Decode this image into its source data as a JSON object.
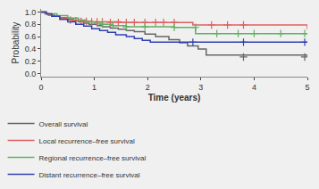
{
  "chart_data": {
    "type": "step",
    "xlabel": "Time (years)",
    "ylabel": "Probability",
    "xlim": [
      0,
      5
    ],
    "ylim": [
      -0.05,
      1.05
    ],
    "xticks": [
      0,
      1,
      2,
      3,
      4,
      5
    ],
    "yticks": [
      {
        "value": 0,
        "label": "0.0"
      },
      0.2,
      0.4,
      0.6,
      0.8,
      {
        "value": 1,
        "label": "1.0"
      }
    ],
    "grid": false,
    "legend": "lower left",
    "series": [
      {
        "name": "Overall survival",
        "color": "#666666",
        "marker": "plus",
        "x": [
          0,
          0.08,
          0.15,
          0.25,
          0.35,
          0.5,
          0.6,
          0.7,
          0.8,
          0.9,
          1.05,
          1.15,
          1.3,
          1.45,
          1.6,
          1.75,
          1.95,
          2.15,
          2.4,
          2.6,
          2.75,
          2.95,
          3.1,
          5.0
        ],
        "values": [
          1.0,
          0.97,
          0.95,
          0.93,
          0.91,
          0.88,
          0.86,
          0.84,
          0.82,
          0.8,
          0.78,
          0.76,
          0.74,
          0.72,
          0.7,
          0.68,
          0.64,
          0.6,
          0.55,
          0.5,
          0.45,
          0.4,
          0.3,
          0.27
        ],
        "censor_x": [
          3.8,
          4.95
        ],
        "censor_y": [
          0.27,
          0.27
        ]
      },
      {
        "name": "Local recurrence–free survival",
        "color": "#e06060",
        "marker": "plus",
        "x": [
          0,
          0.07,
          0.13,
          0.2,
          0.35,
          0.55,
          0.75,
          0.95,
          1.5,
          2.5,
          2.85,
          4.3,
          5.0
        ],
        "values": [
          1.0,
          0.97,
          0.95,
          0.93,
          0.9,
          0.87,
          0.85,
          0.84,
          0.83,
          0.83,
          0.79,
          0.79,
          0.72
        ],
        "censor_x": [
          0.55,
          0.65,
          0.75,
          0.85,
          0.95,
          1.05,
          1.15,
          1.3,
          1.45,
          1.6,
          1.75,
          1.95,
          2.15,
          2.3,
          2.5,
          3.2,
          3.5,
          3.8
        ],
        "censor_y": [
          0.87,
          0.86,
          0.85,
          0.85,
          0.84,
          0.84,
          0.84,
          0.83,
          0.83,
          0.83,
          0.83,
          0.83,
          0.83,
          0.83,
          0.83,
          0.79,
          0.79,
          0.79
        ]
      },
      {
        "name": "Regional recurrence–free survival",
        "color": "#60b060",
        "marker": "plus",
        "x": [
          0,
          0.1,
          0.3,
          0.5,
          0.7,
          0.85,
          1.0,
          1.15,
          1.35,
          1.6,
          1.95,
          2.5,
          2.9,
          5.0
        ],
        "values": [
          1.0,
          0.97,
          0.94,
          0.9,
          0.87,
          0.84,
          0.82,
          0.8,
          0.78,
          0.76,
          0.76,
          0.75,
          0.65,
          0.65
        ],
        "censor_x": [
          1.15,
          1.35,
          1.6,
          1.95,
          2.5,
          2.9,
          3.3,
          3.7,
          4.0,
          4.5,
          4.95
        ],
        "censor_y": [
          0.8,
          0.78,
          0.76,
          0.76,
          0.75,
          0.75,
          0.65,
          0.65,
          0.65,
          0.65,
          0.65
        ]
      },
      {
        "name": "Distant recurrence–free survival",
        "color": "#3040b0",
        "marker": "plus",
        "x": [
          0,
          0.1,
          0.2,
          0.35,
          0.5,
          0.65,
          0.8,
          0.95,
          1.1,
          1.25,
          1.4,
          1.6,
          1.75,
          1.9,
          2.05,
          2.15,
          2.85,
          5.0
        ],
        "values": [
          1.0,
          0.97,
          0.93,
          0.88,
          0.84,
          0.8,
          0.77,
          0.73,
          0.7,
          0.67,
          0.63,
          0.6,
          0.57,
          0.54,
          0.51,
          0.51,
          0.51,
          0.51
        ],
        "censor_x": [
          2.85,
          3.8,
          4.95
        ],
        "censor_y": [
          0.51,
          0.51,
          0.51
        ]
      }
    ]
  }
}
